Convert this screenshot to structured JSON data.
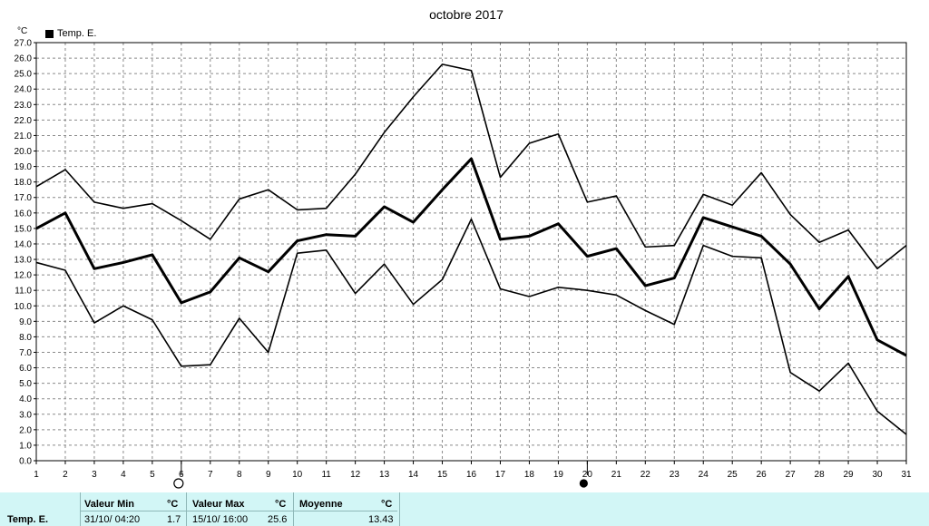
{
  "chart_data": {
    "type": "line",
    "title": "octobre 2017",
    "ylabel": "°C",
    "x": [
      1,
      2,
      3,
      4,
      5,
      6,
      7,
      8,
      9,
      10,
      11,
      12,
      13,
      14,
      15,
      16,
      17,
      18,
      19,
      20,
      21,
      22,
      23,
      24,
      25,
      26,
      27,
      28,
      29,
      30,
      31
    ],
    "ylim": [
      0,
      27
    ],
    "ystep": 1,
    "grid": true,
    "legend_position": "top-left",
    "legend": [
      "Temp. E."
    ],
    "series": [
      {
        "name": "Temp. E.",
        "role": "max",
        "values": [
          17.7,
          18.8,
          16.7,
          16.3,
          16.6,
          15.5,
          14.3,
          16.9,
          17.5,
          16.2,
          16.3,
          18.5,
          21.2,
          23.5,
          25.6,
          25.2,
          18.3,
          20.5,
          21.1,
          16.7,
          17.1,
          13.8,
          13.9,
          17.2,
          16.5,
          18.6,
          15.9,
          14.1,
          14.9,
          12.4,
          13.9
        ]
      },
      {
        "name": "Temp. E.",
        "role": "mean",
        "values": [
          15.0,
          16.0,
          12.4,
          12.8,
          13.3,
          10.2,
          10.9,
          13.1,
          12.2,
          14.2,
          14.6,
          14.5,
          16.4,
          15.4,
          17.5,
          19.5,
          14.3,
          14.5,
          15.3,
          13.2,
          13.7,
          11.3,
          11.8,
          15.7,
          15.1,
          14.5,
          12.7,
          9.8,
          11.9,
          7.8,
          6.8
        ]
      },
      {
        "name": "Temp. E.",
        "role": "min",
        "values": [
          12.8,
          12.3,
          8.9,
          10.0,
          9.1,
          6.1,
          6.2,
          9.2,
          7.0,
          13.4,
          13.6,
          10.8,
          12.7,
          10.1,
          11.7,
          15.6,
          11.1,
          10.6,
          11.2,
          11.0,
          10.7,
          9.7,
          8.8,
          13.9,
          13.2,
          13.1,
          5.7,
          4.5,
          6.3,
          3.2,
          1.7
        ]
      }
    ],
    "moon_markers": [
      {
        "day": 6,
        "phase": "full-moon"
      },
      {
        "day": 20,
        "phase": "new-moon"
      }
    ]
  },
  "stats": {
    "row_label": "Temp. E.",
    "min_label": "Valeur Min",
    "min_unit": "°C",
    "min_when": "31/10/  04:20",
    "min_value": "1.7",
    "max_label": "Valeur Max",
    "max_unit": "°C",
    "max_when": "15/10/  16:00",
    "max_value": "25.6",
    "avg_label": "Moyenne",
    "avg_unit": "°C",
    "avg_value": "13.43",
    "background": "#d2f6f6"
  },
  "colors": {
    "line": "#000000",
    "grid": "#808080",
    "stats_bg": "#d2f6f6"
  }
}
